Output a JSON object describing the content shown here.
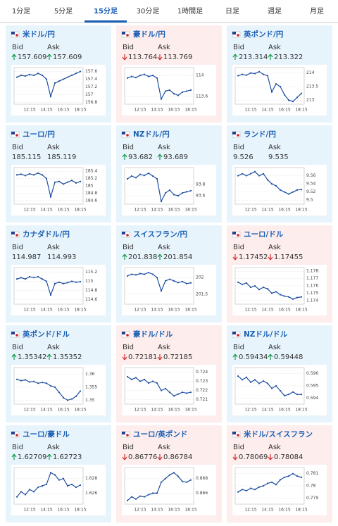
{
  "tabs": [
    "1分足",
    "5分足",
    "15分足",
    "30分足",
    "1時間足",
    "日足",
    "週足",
    "月足"
  ],
  "active_tab": 2,
  "labels": {
    "bid": "Bid",
    "ask": "Ask"
  },
  "time_labels": [
    "12:15",
    "14:15",
    "16:15",
    "18:15"
  ],
  "cards": [
    {
      "title": "米ドル/円",
      "direction": "up",
      "bid": 157.609,
      "ask": 157.609,
      "chart": {
        "type": "line",
        "color": "#1f4fa0",
        "ylim": [
          156.75,
          157.7
        ],
        "yticks": [
          157.6,
          157.4,
          157.2,
          157,
          156.8
        ],
        "values": [
          157.45,
          157.5,
          157.48,
          157.52,
          157.5,
          157.55,
          157.5,
          157.4,
          156.95,
          157.3,
          157.35,
          157.4,
          157.45,
          157.5,
          157.55,
          157.6
        ]
      }
    },
    {
      "title": "豪ドル/円",
      "direction": "down",
      "bid": 113.764,
      "ask": 113.769,
      "chart": {
        "type": "line",
        "color": "#1f4fa0",
        "ylim": [
          113.45,
          114.15
        ],
        "yticks": [
          114,
          113.6
        ],
        "values": [
          113.95,
          113.98,
          113.96,
          114.0,
          114.02,
          113.98,
          114.0,
          113.95,
          113.55,
          113.7,
          113.72,
          113.65,
          113.62,
          113.68,
          113.7,
          113.72
        ]
      }
    },
    {
      "title": "英ポンド/円",
      "direction": "up",
      "bid": 213.314,
      "ask": 213.322,
      "chart": {
        "type": "line",
        "color": "#1f4fa0",
        "ylim": [
          212.85,
          214.2
        ],
        "yticks": [
          214,
          213.5,
          213
        ],
        "values": [
          213.9,
          213.95,
          213.92,
          214.0,
          213.98,
          214.05,
          213.95,
          213.9,
          213.3,
          213.6,
          213.5,
          213.2,
          213.0,
          212.95,
          213.1,
          213.25
        ]
      }
    },
    {
      "title": "ユーロ/円",
      "direction": "none",
      "bid": 185.115,
      "ask": 185.119,
      "chart": {
        "type": "line",
        "color": "#1f4fa0",
        "ylim": [
          184.5,
          185.5
        ],
        "yticks": [
          185.4,
          185.2,
          185,
          184.8,
          184.6
        ],
        "values": [
          185.3,
          185.32,
          185.28,
          185.33,
          185.3,
          185.35,
          185.3,
          185.2,
          184.7,
          185.1,
          185.12,
          185.05,
          185.1,
          185.15,
          185.08,
          185.12
        ]
      }
    },
    {
      "title": "NZドル/円",
      "direction": "up",
      "bid": 93.682,
      "ask": 93.689,
      "chart": {
        "type": "line",
        "color": "#1f4fa0",
        "ylim": [
          93.45,
          94.1
        ],
        "yticks": [
          93.8,
          93.6
        ],
        "values": [
          93.9,
          93.95,
          93.92,
          93.98,
          93.96,
          94.0,
          93.95,
          93.9,
          93.5,
          93.65,
          93.7,
          93.62,
          93.6,
          93.65,
          93.67,
          93.69
        ]
      }
    },
    {
      "title": "ランド/円",
      "direction": "none",
      "bid": 9.526,
      "ask": 9.535,
      "chart": {
        "type": "line",
        "color": "#1f4fa0",
        "ylim": [
          9.49,
          9.58
        ],
        "yticks": [
          9.56,
          9.54,
          9.52,
          9.5
        ],
        "values": [
          9.56,
          9.565,
          9.56,
          9.565,
          9.57,
          9.56,
          9.565,
          9.55,
          9.54,
          9.535,
          9.525,
          9.52,
          9.515,
          9.52,
          9.525,
          9.526
        ]
      }
    },
    {
      "title": "カナダドル/円",
      "direction": "none",
      "bid": 114.987,
      "ask": 114.993,
      "chart": {
        "type": "line",
        "color": "#1f4fa0",
        "ylim": [
          114.5,
          115.3
        ],
        "yticks": [
          115.2,
          115,
          114.8,
          114.6
        ],
        "values": [
          115.05,
          115.08,
          115.05,
          115.1,
          115.08,
          115.1,
          115.05,
          115.0,
          114.7,
          114.95,
          114.98,
          114.95,
          114.97,
          115.0,
          114.98,
          114.99
        ]
      }
    },
    {
      "title": "スイスフラン/円",
      "direction": "up",
      "bid": 201.838,
      "ask": 201.854,
      "chart": {
        "type": "line",
        "color": "#1f4fa0",
        "ylim": [
          201.2,
          202.3
        ],
        "yticks": [
          202,
          201.5
        ],
        "values": [
          202.05,
          202.1,
          202.08,
          202.12,
          202.1,
          202.15,
          202.1,
          202.0,
          201.6,
          201.9,
          201.95,
          201.9,
          201.85,
          201.88,
          201.82,
          201.84
        ]
      }
    },
    {
      "title": "ユーロ/ドル",
      "direction": "down",
      "bid": 1.17452,
      "ask": 1.17455,
      "chart": {
        "type": "line",
        "color": "#1f4fa0",
        "ylim": [
          1.1735,
          1.1785
        ],
        "yticks": [
          1.178,
          1.177,
          1.176,
          1.175,
          1.174
        ],
        "values": [
          1.1765,
          1.1762,
          1.1764,
          1.1758,
          1.176,
          1.1755,
          1.1758,
          1.1756,
          1.175,
          1.1752,
          1.1748,
          1.1746,
          1.1745,
          1.1742,
          1.1744,
          1.1745
        ]
      }
    },
    {
      "title": "英ポンド/ドル",
      "direction": "up",
      "bid": 1.35342,
      "ask": 1.35352,
      "chart": {
        "type": "line",
        "color": "#1f4fa0",
        "ylim": [
          1.3485,
          1.3625
        ],
        "yticks": [
          1.36,
          1.355,
          1.35
        ],
        "values": [
          1.358,
          1.3575,
          1.3578,
          1.357,
          1.3572,
          1.3565,
          1.3568,
          1.3565,
          1.3555,
          1.355,
          1.353,
          1.351,
          1.35,
          1.3505,
          1.3515,
          1.3535
        ]
      }
    },
    {
      "title": "豪ドル/ドル",
      "direction": "down",
      "bid": 0.72181,
      "ask": 0.72185,
      "chart": {
        "type": "line",
        "color": "#1f4fa0",
        "ylim": [
          0.7205,
          0.7245
        ],
        "yticks": [
          0.724,
          0.723,
          0.722,
          0.721
        ],
        "values": [
          0.7235,
          0.7232,
          0.7234,
          0.723,
          0.7232,
          0.7228,
          0.723,
          0.7228,
          0.722,
          0.7222,
          0.7218,
          0.7214,
          0.7216,
          0.7218,
          0.7217,
          0.7218
        ]
      }
    },
    {
      "title": "NZドル/ドル",
      "direction": "up",
      "bid": 0.59434,
      "ask": 0.59448,
      "chart": {
        "type": "line",
        "color": "#1f4fa0",
        "ylim": [
          0.5935,
          0.5965
        ],
        "yticks": [
          0.596,
          0.595,
          0.594
        ],
        "values": [
          0.5958,
          0.5955,
          0.5957,
          0.5953,
          0.5955,
          0.5952,
          0.5954,
          0.5952,
          0.5948,
          0.595,
          0.5946,
          0.5942,
          0.5943,
          0.5945,
          0.5943,
          0.5943
        ]
      }
    },
    {
      "title": "ユーロ/豪ドル",
      "direction": "up",
      "bid": 1.62709,
      "ask": 1.62723,
      "chart": {
        "type": "line",
        "color": "#1f4fa0",
        "ylim": [
          1.6245,
          1.6295
        ],
        "yticks": [
          1.628,
          1.626
        ],
        "values": [
          1.6255,
          1.6262,
          1.6258,
          1.6265,
          1.6262,
          1.6268,
          1.627,
          1.6272,
          1.6288,
          1.6285,
          1.6278,
          1.628,
          1.627,
          1.6272,
          1.6268,
          1.6271
        ]
      }
    },
    {
      "title": "ユーロ/英ポンド",
      "direction": "down",
      "bid": 0.86776,
      "ask": 0.86784,
      "chart": {
        "type": "line",
        "color": "#1f4fa0",
        "ylim": [
          0.8645,
          0.8695
        ],
        "yticks": [
          0.868,
          0.866
        ],
        "values": [
          0.865,
          0.8655,
          0.8652,
          0.8656,
          0.8655,
          0.8658,
          0.866,
          0.866,
          0.8675,
          0.868,
          0.8685,
          0.8688,
          0.8683,
          0.8676,
          0.8675,
          0.8678
        ]
      }
    },
    {
      "title": "米ドル/スイスフラン",
      "direction": "down",
      "bid": 0.78069,
      "ask": 0.78084,
      "chart": {
        "type": "line",
        "color": "#1f4fa0",
        "ylim": [
          0.7785,
          0.7815
        ],
        "yticks": [
          0.781,
          0.78,
          0.779
        ],
        "values": [
          0.7795,
          0.7797,
          0.7796,
          0.7798,
          0.7797,
          0.7799,
          0.78,
          0.7802,
          0.7803,
          0.7801,
          0.7805,
          0.7807,
          0.7808,
          0.781,
          0.7808,
          0.7807
        ]
      }
    }
  ]
}
